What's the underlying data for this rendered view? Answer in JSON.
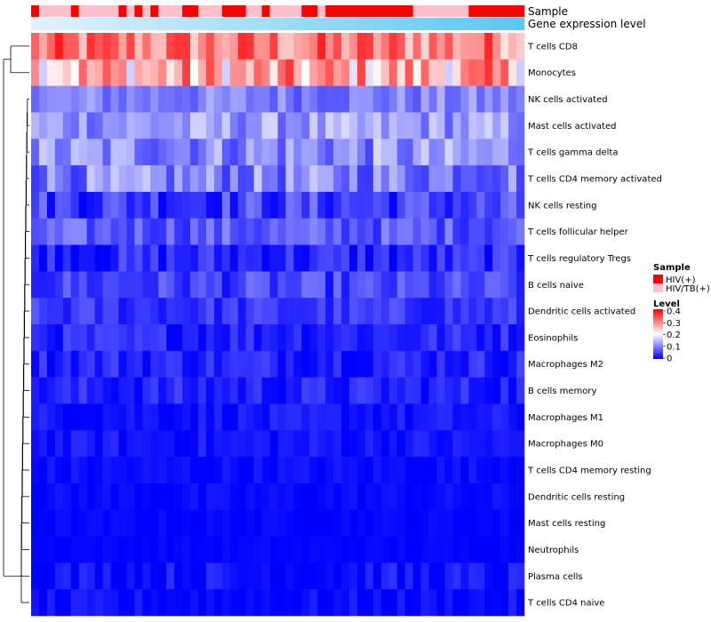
{
  "chart_data": {
    "type": "heatmap",
    "title": "",
    "annotation_tracks": [
      {
        "name": "Sample",
        "label": "Sample"
      },
      {
        "name": "Gene expression level",
        "label": "Gene expression level"
      }
    ],
    "sample_groups": [
      "HIV(+)",
      "HIV/TB(+)",
      "HIV/TB(+)",
      "HIV/TB(+)",
      "HIV/TB(+)",
      "HIV(+)",
      "HIV/TB(+)",
      "HIV/TB(+)",
      "HIV/TB(+)",
      "HIV/TB(+)",
      "HIV/TB(+)",
      "HIV(+)",
      "HIV/TB(+)",
      "HIV(+)",
      "HIV/TB(+)",
      "HIV(+)",
      "HIV/TB(+)",
      "HIV/TB(+)",
      "HIV/TB(+)",
      "HIV(+)",
      "HIV(+)",
      "HIV/TB(+)",
      "HIV/TB(+)",
      "HIV/TB(+)",
      "HIV(+)",
      "HIV(+)",
      "HIV(+)",
      "HIV/TB(+)",
      "HIV/TB(+)",
      "HIV(+)",
      "HIV/TB(+)",
      "HIV/TB(+)",
      "HIV/TB(+)",
      "HIV/TB(+)",
      "HIV(+)",
      "HIV(+)",
      "HIV/TB(+)",
      "HIV(+)",
      "HIV(+)",
      "HIV(+)",
      "HIV(+)",
      "HIV(+)",
      "HIV(+)",
      "HIV(+)",
      "HIV(+)",
      "HIV(+)",
      "HIV(+)",
      "HIV(+)",
      "HIV/TB(+)",
      "HIV/TB(+)",
      "HIV/TB(+)",
      "HIV/TB(+)",
      "HIV/TB(+)",
      "HIV/TB(+)",
      "HIV/TB(+)",
      "HIV(+)",
      "HIV(+)",
      "HIV(+)",
      "HIV(+)",
      "HIV(+)",
      "HIV(+)",
      "HIV(+)"
    ],
    "expression_track_colors": [
      "#dff2fb",
      "#5cc8f2"
    ],
    "rows": [
      "T cells CD8",
      "Monocytes",
      "NK cells activated",
      "Mast cells activated",
      "T cells gamma delta",
      "T cells CD4 memory activated",
      "NK cells resting",
      "T cells follicular helper",
      "T cells regulatory  Tregs",
      "B cells naive",
      "Dendritic cells activated",
      "Eosinophils",
      "Macrophages M2",
      "B cells memory",
      "Macrophages M1",
      "Macrophages M0",
      "T cells CD4 memory resting",
      "Dendritic cells resting",
      "Mast cells resting",
      "Neutrophils",
      "Plasma cells",
      "T cells CD4 naive"
    ],
    "n_columns": 62,
    "row_mean_levels": [
      0.3,
      0.26,
      0.1,
      0.12,
      0.11,
      0.1,
      0.05,
      0.07,
      0.03,
      0.05,
      0.04,
      0.03,
      0.03,
      0.025,
      0.015,
      0.015,
      0.008,
      0.006,
      0.004,
      0.003,
      0.01,
      0.006
    ],
    "row_spread": [
      0.08,
      0.1,
      0.04,
      0.05,
      0.06,
      0.06,
      0.05,
      0.04,
      0.04,
      0.04,
      0.03,
      0.03,
      0.03,
      0.03,
      0.02,
      0.02,
      0.015,
      0.012,
      0.008,
      0.006,
      0.03,
      0.02
    ],
    "legend": {
      "sample": {
        "title": "Sample",
        "items": [
          {
            "label": "HIV(+)",
            "color": "#ff0000"
          },
          {
            "label": "HIV/TB(+)",
            "color": "#ffc0cb"
          }
        ]
      },
      "level": {
        "title": "Level",
        "ticks": [
          0.4,
          0.3,
          0.2,
          0.1,
          0
        ],
        "range": [
          0,
          0.4
        ],
        "colors": [
          "#0000ff",
          "#ffffff",
          "#ff0000"
        ]
      }
    }
  }
}
